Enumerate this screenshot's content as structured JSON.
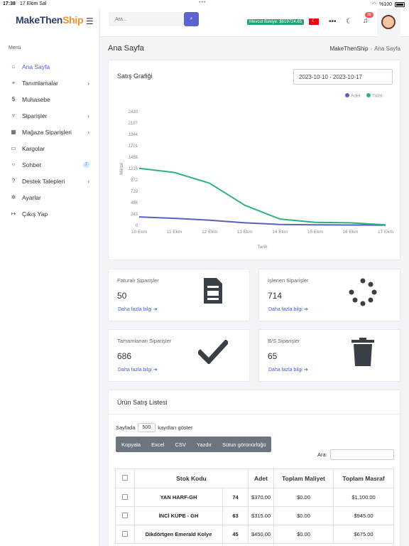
{
  "statusbar": {
    "time": "17:38",
    "date": "17 Ekim Sal",
    "battery": "%100"
  },
  "app": {
    "logo_part1": "MakeThen",
    "logo_part2": "Ship"
  },
  "sidebar": {
    "menu_title": "Menü",
    "items": [
      {
        "label": "Ana Sayfa",
        "icon": "home-icon",
        "active": true
      },
      {
        "label": "Tanımlamalar",
        "icon": "plus-icon",
        "chevron": true
      },
      {
        "label": "Muhasebe",
        "icon": "dollar-icon"
      },
      {
        "label": "Siparişler",
        "icon": "cart-icon",
        "chevron": true
      },
      {
        "label": "Mağaza Siparişleri",
        "icon": "store-icon",
        "chevron": true
      },
      {
        "label": "Kargolar",
        "icon": "truck-icon"
      },
      {
        "label": "Sohbet",
        "icon": "chat-icon",
        "badge": "7"
      },
      {
        "label": "Destek Talepleri",
        "icon": "help-icon",
        "chevron": true
      },
      {
        "label": "Ayarlar",
        "icon": "gear-icon"
      },
      {
        "label": "Çıkış Yap",
        "icon": "logout-icon"
      }
    ]
  },
  "topbar": {
    "search_placeholder": "Ara...",
    "balance": "Mevcut Bakiye: $619724.65",
    "notif_count": "36"
  },
  "page": {
    "title": "Ana Sayfa",
    "breadcrumb": [
      "MakeThenShip",
      "Ana Sayfa"
    ]
  },
  "chart_card": {
    "title": "Satış Grafiği",
    "daterange": "2023-10-10 - 2023-10-17"
  },
  "chart_data": {
    "type": "line",
    "x": [
      "10 Ekm",
      "11 Ekm",
      "12 Ekm",
      "13 Ekm",
      "14 Ekm",
      "15 Ekm",
      "16 Ekm",
      "17 Ekm"
    ],
    "series": [
      {
        "name": "Adet",
        "color": "#5a5fc0",
        "values": [
          180,
          150,
          110,
          55,
          20,
          12,
          8,
          5
        ]
      },
      {
        "name": "Tutar",
        "color": "#2bb37e",
        "values": [
          1220,
          1130,
          900,
          430,
          135,
          65,
          55,
          10
        ]
      }
    ],
    "yticks": [
      "0",
      "243",
      "486",
      "729",
      "972",
      "1215",
      "1458",
      "1701",
      "1944",
      "2187",
      "2430"
    ],
    "xlabel": "Tarih",
    "ylabel": "Miktar",
    "ylim": [
      0,
      2430
    ],
    "legend_position": "top-right",
    "grid": false
  },
  "stats": [
    {
      "label": "Faturalı Siparişler",
      "value": "50",
      "link": "Daha fazla bilgi",
      "icon": "invoice-icon"
    },
    {
      "label": "İşlenen Siparişler",
      "value": "714",
      "link": "Daha fazla bilgi",
      "icon": "spinner-icon"
    },
    {
      "label": "Tamamlanan Siparişler",
      "value": "686",
      "link": "Daha fazla bilgi",
      "icon": "check-icon"
    },
    {
      "label": "B/S Siparişler",
      "value": "65",
      "link": "Daha fazla bilgi",
      "icon": "trash-icon"
    }
  ],
  "product_list": {
    "title": "Ürün Satış Listesi",
    "show_prefix": "Sayfada",
    "show_value": "500",
    "show_suffix": "kayıtları göster",
    "buttons": [
      "Kopyala",
      "Excel",
      "CSV",
      "Yazdır",
      "Sütun görünürlüğü"
    ],
    "search_label": "Ara:",
    "columns": [
      "Stok Kodu",
      "Adet",
      "Toplam Maliyet",
      "Toplam Masraf"
    ],
    "rows": [
      {
        "name": "YAN HARF-GH",
        "qty": "74",
        "cost": "$370.00",
        "exp": "$0.00",
        "total": "$1,100.00"
      },
      {
        "name": "İNCİ KÜPE - GH",
        "qty": "63",
        "cost": "$315.00",
        "exp": "$0.00",
        "total": "$945.00"
      },
      {
        "name": "Dikdörtgen Emerald Kolye",
        "qty": "45",
        "cost": "$450.00",
        "exp": "$0.00",
        "total": "$675.00"
      }
    ]
  }
}
